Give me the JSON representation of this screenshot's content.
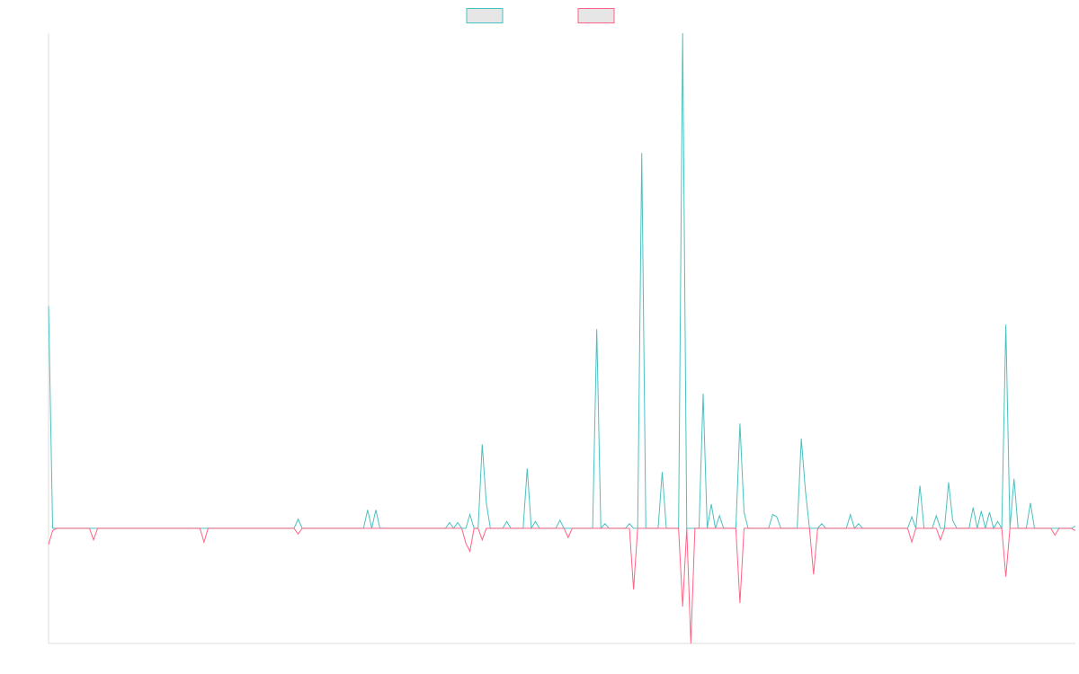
{
  "chart_data": {
    "type": "line",
    "title": "",
    "xlabel": "",
    "ylabel": "",
    "grid": false,
    "legend_position": "top-center",
    "ylim": [
      -1.0,
      4.3
    ],
    "x_range": [
      0,
      251
    ],
    "series": [
      {
        "name": "",
        "color": "#4bc0c0",
        "fill": "#e6e6e6",
        "points": [
          [
            0,
            1.93
          ],
          [
            1,
            0.0
          ],
          [
            251,
            0.02
          ],
          [
            61,
            0.08
          ],
          [
            78,
            0.16
          ],
          [
            80,
            0.16
          ],
          [
            98,
            0.05
          ],
          [
            100,
            0.05
          ],
          [
            103,
            0.12
          ],
          [
            106,
            0.73
          ],
          [
            107,
            0.22
          ],
          [
            112,
            0.06
          ],
          [
            117,
            0.52
          ],
          [
            119,
            0.06
          ],
          [
            125,
            0.07
          ],
          [
            134,
            1.73
          ],
          [
            136,
            0.04
          ],
          [
            142,
            0.04
          ],
          [
            145,
            3.26
          ],
          [
            150,
            0.49
          ],
          [
            155,
            4.3
          ],
          [
            160,
            1.17
          ],
          [
            162,
            0.21
          ],
          [
            164,
            0.11
          ],
          [
            169,
            0.91
          ],
          [
            170,
            0.14
          ],
          [
            177,
            0.12
          ],
          [
            178,
            0.1
          ],
          [
            184,
            0.78
          ],
          [
            185,
            0.33
          ],
          [
            189,
            0.04
          ],
          [
            196,
            0.12
          ],
          [
            198,
            0.04
          ],
          [
            211,
            0.1
          ],
          [
            213,
            0.37
          ],
          [
            217,
            0.11
          ],
          [
            220,
            0.4
          ],
          [
            221,
            0.07
          ],
          [
            226,
            0.18
          ],
          [
            228,
            0.15
          ],
          [
            230,
            0.14
          ],
          [
            232,
            0.06
          ],
          [
            234,
            1.77
          ],
          [
            236,
            0.43
          ],
          [
            240,
            0.22
          ]
        ]
      },
      {
        "name": "",
        "color": "#ff6384",
        "fill": "#e6e6e6",
        "points": [
          [
            0,
            -0.14
          ],
          [
            1,
            -0.02
          ],
          [
            251,
            -0.02
          ],
          [
            11,
            -0.1
          ],
          [
            38,
            -0.12
          ],
          [
            61,
            -0.05
          ],
          [
            102,
            -0.13
          ],
          [
            103,
            -0.2
          ],
          [
            106,
            -0.1
          ],
          [
            127,
            -0.08
          ],
          [
            143,
            -0.53
          ],
          [
            155,
            -0.68
          ],
          [
            157,
            -1.0
          ],
          [
            169,
            -0.65
          ],
          [
            187,
            -0.4
          ],
          [
            211,
            -0.12
          ],
          [
            218,
            -0.1
          ],
          [
            234,
            -0.42
          ],
          [
            246,
            -0.06
          ]
        ]
      }
    ]
  }
}
